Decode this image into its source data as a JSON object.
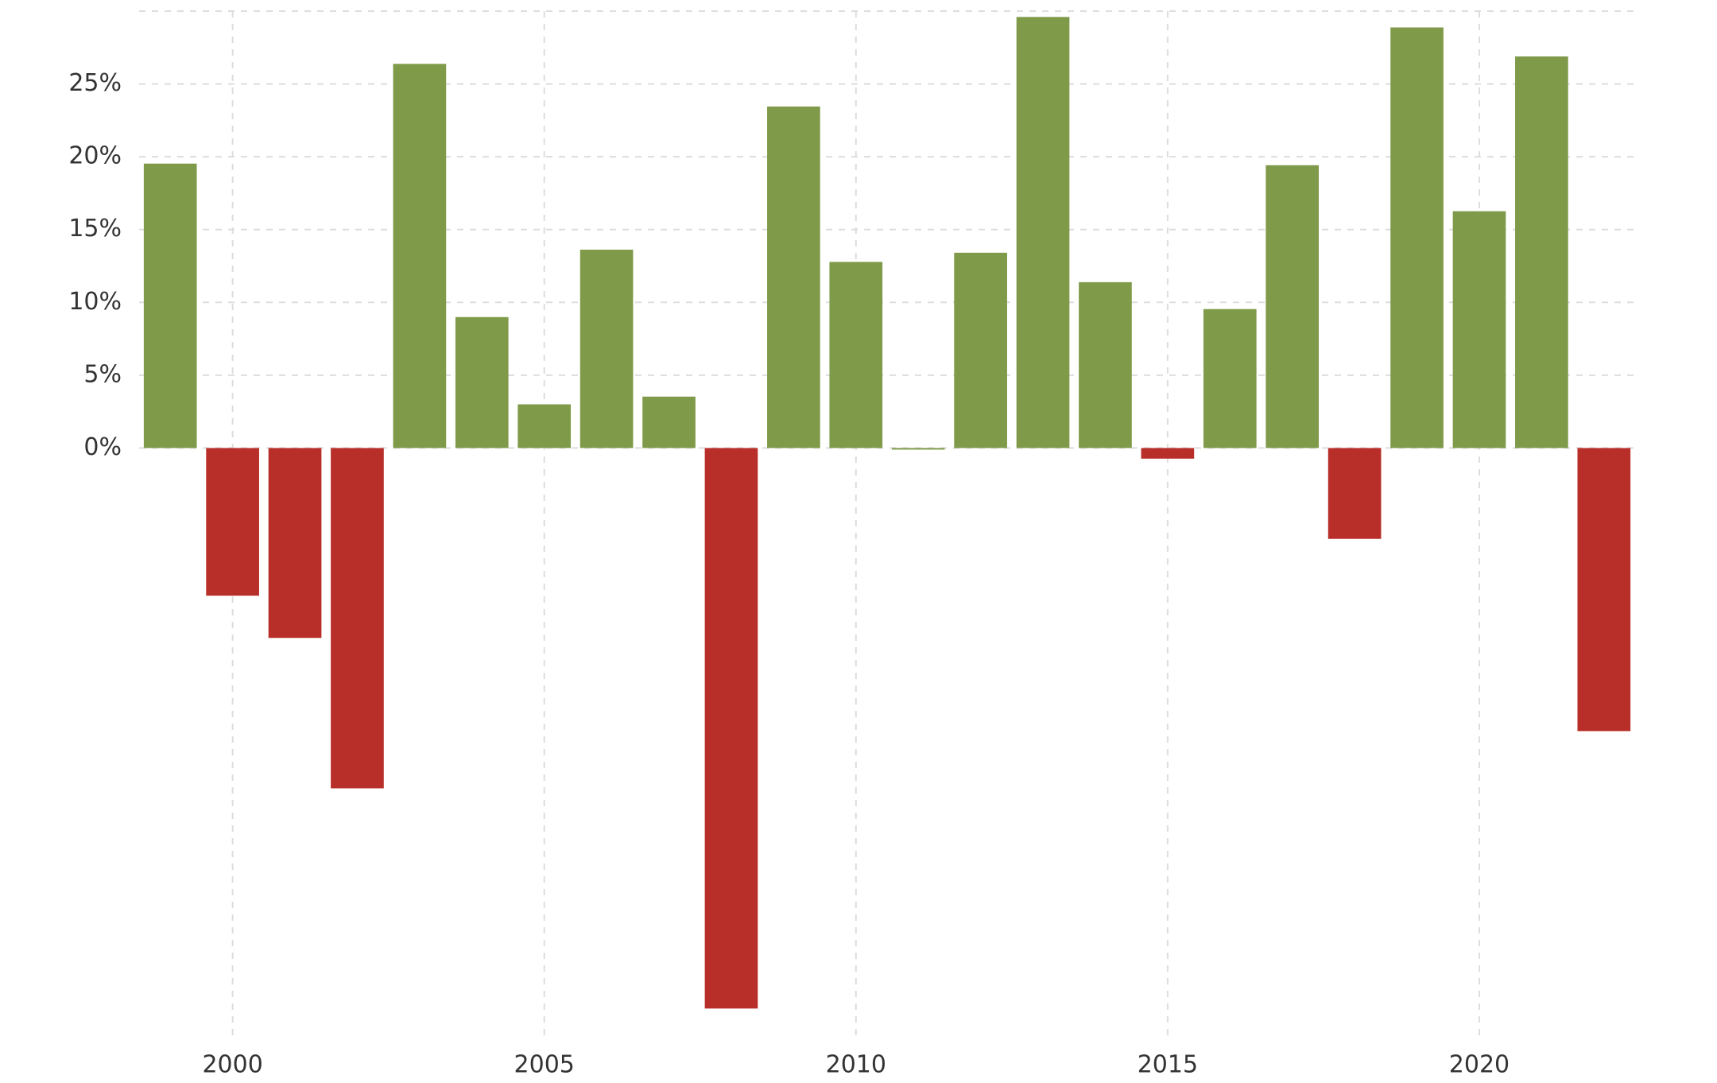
{
  "chart_data": {
    "type": "bar",
    "x": [
      1999,
      2000,
      2001,
      2002,
      2003,
      2004,
      2005,
      2006,
      2007,
      2008,
      2009,
      2010,
      2011,
      2012,
      2013,
      2014,
      2015,
      2016,
      2017,
      2018,
      2019,
      2020,
      2021,
      2022
    ],
    "values": [
      19.53,
      -10.14,
      -13.04,
      -23.37,
      26.38,
      8.99,
      3.0,
      13.62,
      3.53,
      -38.49,
      23.45,
      12.78,
      0.0,
      13.41,
      29.6,
      11.39,
      -0.73,
      9.54,
      19.42,
      -6.24,
      28.88,
      16.26,
      26.89,
      -19.44
    ],
    "colors": {
      "positive": "#7f9a48",
      "negative": "#b82e29"
    },
    "xlim": [
      1998.5,
      2022.5
    ],
    "xticks": [
      2000,
      2005,
      2010,
      2015,
      2020
    ],
    "ylim": [
      -40,
      30
    ],
    "yticks": [
      {
        "value": 0,
        "label": "0%"
      },
      {
        "value": 5,
        "label": "5%"
      },
      {
        "value": 10,
        "label": "10%"
      },
      {
        "value": 15,
        "label": "15%"
      },
      {
        "value": 20,
        "label": "20%"
      },
      {
        "value": 25,
        "label": "25%"
      }
    ],
    "grid": true
  }
}
